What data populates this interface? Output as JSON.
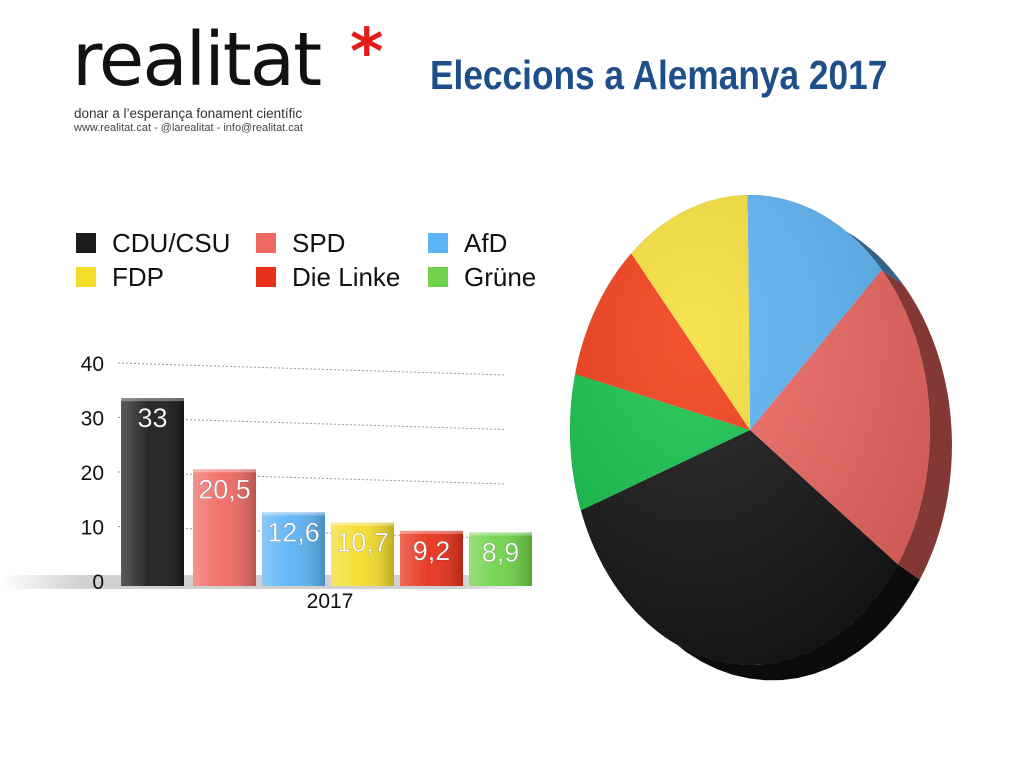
{
  "logo": {
    "wordmark": "realitat",
    "mark": "*",
    "tagline": "donar a l’esperança fonament científic",
    "contact": "www.realitat.cat - @larealitat - info@realitat.cat"
  },
  "page_title": "Eleccions a Alemanya 2017",
  "colors": {
    "title": "#1f4f8a",
    "logo_star": "#e41b1b"
  },
  "chart_data": [
    {
      "type": "bar",
      "categories": [
        "2017"
      ],
      "series": [
        {
          "name": "CDU/CSU",
          "values": [
            33
          ],
          "label": "33",
          "color": "#1c1c1c"
        },
        {
          "name": "SPD",
          "values": [
            20.5
          ],
          "label": "20,5",
          "color": "#f06a64"
        },
        {
          "name": "AfD",
          "values": [
            12.6
          ],
          "label": "12,6",
          "color": "#5cb4f5"
        },
        {
          "name": "FDP",
          "values": [
            10.7
          ],
          "label": "10,7",
          "color": "#f5dd2a"
        },
        {
          "name": "Die Linke",
          "values": [
            9.2
          ],
          "label": "9,2",
          "color": "#e8311a"
        },
        {
          "name": "Grüne",
          "values": [
            8.9
          ],
          "label": "8,9",
          "color": "#6fd24a"
        }
      ],
      "ylim": [
        0,
        40
      ],
      "yticks": [
        0,
        10,
        20,
        30,
        40
      ],
      "grid": true,
      "legend": "top-left"
    },
    {
      "type": "pie",
      "labels": [
        "CDU/CSU",
        "SPD",
        "AfD",
        "FDP",
        "Die Linke",
        "Grüne"
      ],
      "values": [
        33,
        20.5,
        12.6,
        10.7,
        9.2,
        8.9
      ],
      "colors": [
        "#141414",
        "#ee6660",
        "#5cb4f5",
        "#f7e03a",
        "#f23c16",
        "#14c24a"
      ]
    }
  ]
}
